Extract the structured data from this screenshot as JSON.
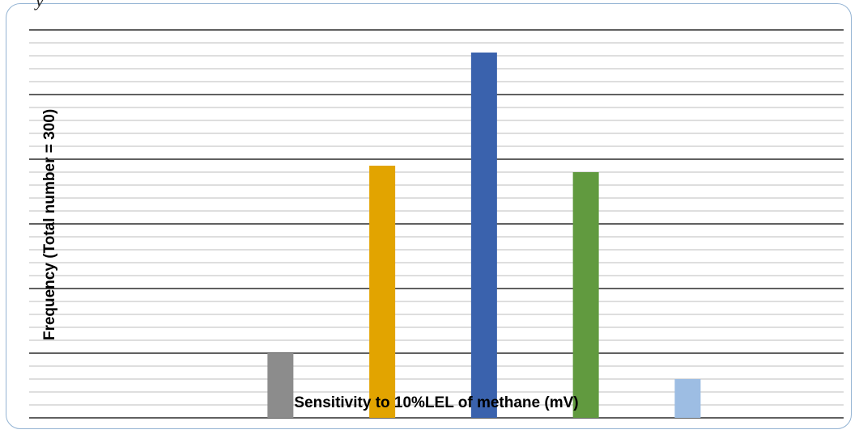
{
  "chart_data": {
    "type": "bar",
    "title": "",
    "xlabel": "Sensitivity to 10%LEL of methane (mV)",
    "ylabel": "Frequency (Total number = 300)",
    "ylim": [
      0,
      120
    ],
    "grid": true,
    "categories": [
      "",
      "",
      "",
      "",
      "",
      "",
      "",
      ""
    ],
    "values": [
      0,
      0,
      20,
      78,
      113,
      76,
      12,
      0
    ],
    "colors": [
      "#8c8c8c",
      "#8c8c8c",
      "#8c8c8c",
      "#e2a400",
      "#3a62ad",
      "#619a3f",
      "#9dbde3",
      "#9dbde3"
    ]
  }
}
